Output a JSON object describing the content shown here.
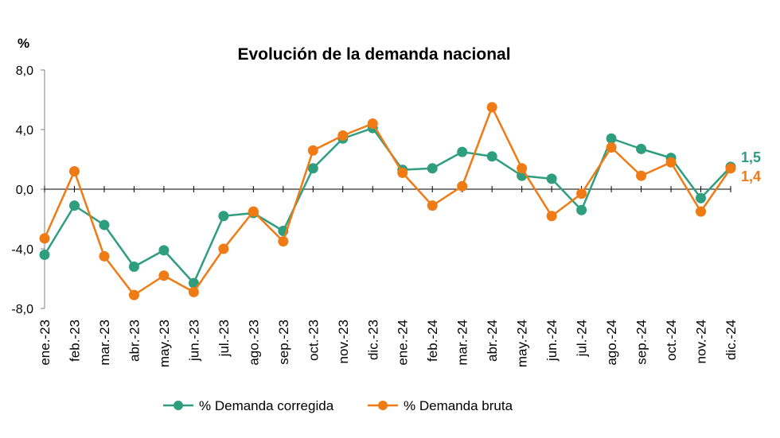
{
  "chart_data": {
    "type": "line",
    "title": "Evolución de la demanda nacional",
    "ylabel": "%",
    "xlabel": "",
    "ylim": [
      -8,
      8
    ],
    "yticks": [
      -8,
      -4,
      0,
      4,
      8
    ],
    "ytick_labels": [
      "-8,0",
      "-4,0",
      "0,0",
      "4,0",
      "8,0"
    ],
    "categories": [
      "ene.-23",
      "feb.-23",
      "mar.-23",
      "abr.-23",
      "may.-23",
      "jun.-23",
      "jul.-23",
      "ago.-23",
      "sep.-23",
      "oct.-23",
      "nov.-23",
      "dic.-23",
      "ene.-24",
      "feb.-24",
      "mar.-24",
      "abr.-24",
      "may.-24",
      "jun.-24",
      "jul.-24",
      "ago.-24",
      "sep.-24",
      "oct.-24",
      "nov.-24",
      "dic.-24"
    ],
    "series": [
      {
        "name": "% Demanda corregida",
        "color": "#2e9e7e",
        "values": [
          -4.4,
          -1.1,
          -2.4,
          -5.2,
          -4.1,
          -6.3,
          -1.8,
          -1.6,
          -2.8,
          1.4,
          3.4,
          4.1,
          1.3,
          1.4,
          2.5,
          2.2,
          0.9,
          0.7,
          -1.4,
          3.4,
          2.7,
          2.1,
          -0.6,
          1.5
        ],
        "end_label": "1,5"
      },
      {
        "name": "% Demanda bruta",
        "color": "#f07a14",
        "values": [
          -3.3,
          1.2,
          -4.5,
          -7.1,
          -5.8,
          -6.9,
          -4.0,
          -1.5,
          -3.5,
          2.6,
          3.6,
          4.4,
          1.1,
          -1.1,
          0.2,
          5.5,
          1.4,
          -1.8,
          -0.3,
          2.8,
          0.9,
          1.8,
          -1.5,
          1.4
        ],
        "end_label": "1,4"
      }
    ],
    "legend": "bottom-center",
    "grid": false
  }
}
